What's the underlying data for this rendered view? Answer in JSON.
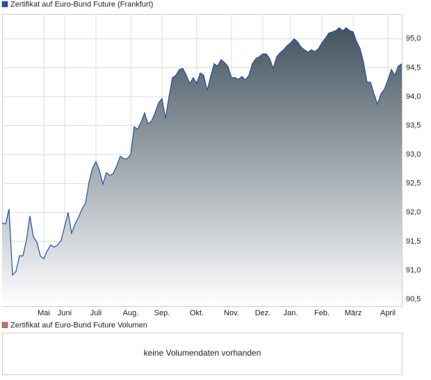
{
  "chart_data": {
    "type": "area",
    "legend": "Zertifikat auf Euro-Bund Future (Frankfurt)",
    "categories": [
      null,
      null,
      null,
      null,
      null,
      null,
      null,
      null,
      null,
      null,
      null,
      null,
      "Mai",
      null,
      null,
      null,
      null,
      null,
      "Juni",
      null,
      null,
      null,
      null,
      null,
      null,
      null,
      null,
      "Juli",
      null,
      null,
      null,
      null,
      null,
      null,
      null,
      null,
      null,
      "Aug.",
      null,
      null,
      null,
      null,
      null,
      null,
      null,
      null,
      "Sep.",
      null,
      null,
      null,
      null,
      null,
      null,
      null,
      null,
      null,
      "Okt.",
      null,
      null,
      null,
      null,
      null,
      null,
      null,
      null,
      null,
      "Nov.",
      null,
      null,
      null,
      null,
      null,
      null,
      null,
      null,
      "Dez.",
      null,
      null,
      null,
      null,
      null,
      null,
      null,
      "Jan.",
      null,
      null,
      null,
      null,
      null,
      null,
      null,
      null,
      "Feb.",
      null,
      null,
      null,
      null,
      null,
      null,
      null,
      null,
      "März",
      null,
      null,
      null,
      null,
      null,
      null,
      null,
      null,
      null,
      "April",
      null,
      null,
      null,
      null
    ],
    "series": [
      {
        "name": "Zertifikat auf Euro-Bund Future (Frankfurt)",
        "color": "#1f4fae",
        "values": [
          91.82,
          91.8,
          92.06,
          90.92,
          90.98,
          91.25,
          91.25,
          91.52,
          91.94,
          91.58,
          91.49,
          91.25,
          91.2,
          91.34,
          91.44,
          91.4,
          91.44,
          91.52,
          91.76,
          92.0,
          91.64,
          91.8,
          91.92,
          92.06,
          92.16,
          92.52,
          92.76,
          92.88,
          92.73,
          92.49,
          92.69,
          92.64,
          92.67,
          92.81,
          92.97,
          92.93,
          92.93,
          93.0,
          93.48,
          93.44,
          93.56,
          93.72,
          93.53,
          93.58,
          93.72,
          93.89,
          93.97,
          93.63,
          93.99,
          94.33,
          94.37,
          94.47,
          94.49,
          94.37,
          94.23,
          94.33,
          94.23,
          94.41,
          94.37,
          94.11,
          94.35,
          94.57,
          94.53,
          94.64,
          94.59,
          94.52,
          94.33,
          94.33,
          94.3,
          94.35,
          94.29,
          94.37,
          94.57,
          94.66,
          94.69,
          94.74,
          94.74,
          94.66,
          94.49,
          94.69,
          94.76,
          94.81,
          94.88,
          94.93,
          95.0,
          94.95,
          94.86,
          94.81,
          94.77,
          94.81,
          94.78,
          94.83,
          94.93,
          95.01,
          95.1,
          95.12,
          95.14,
          95.19,
          95.14,
          95.19,
          95.14,
          95.12,
          94.95,
          94.83,
          94.59,
          94.25,
          94.25,
          94.05,
          93.87,
          94.05,
          94.13,
          94.29,
          94.47,
          94.37,
          94.53,
          94.57
        ]
      }
    ],
    "ylim": [
      90.38,
      95.43
    ],
    "yticks": [
      {
        "value": 90.5,
        "label": "90,5"
      },
      {
        "value": 91.0,
        "label": "91,0"
      },
      {
        "value": 91.5,
        "label": "91,5"
      },
      {
        "value": 92.0,
        "label": "92,0"
      },
      {
        "value": 92.5,
        "label": "92,5"
      },
      {
        "value": 93.0,
        "label": "93,0"
      },
      {
        "value": 93.5,
        "label": "93,5"
      },
      {
        "value": 94.0,
        "label": "94,0"
      },
      {
        "value": 94.5,
        "label": "94,5"
      },
      {
        "value": 95.0,
        "label": "95,0"
      }
    ],
    "grid": true
  },
  "volume_panel": {
    "legend": "Zertifikat auf Euro-Bund Future Volumen",
    "message": "keine Volumendaten vorhanden"
  }
}
